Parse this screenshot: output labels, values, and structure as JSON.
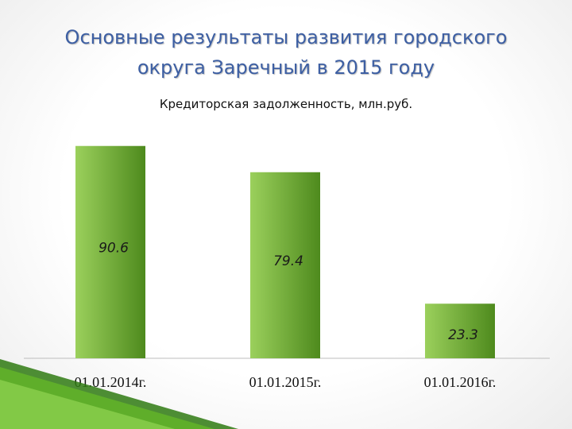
{
  "slide": {
    "title_line1": "Основные результаты развития городского",
    "title_line2": "округа Заречный в 2015 году"
  },
  "colors": {
    "title": "#3d5fa3",
    "bar_light": "#9bd05c",
    "bar_dark": "#4e8a1d",
    "decor": "#4f9a20"
  },
  "chart_data": {
    "type": "bar",
    "title": "Кредиторская задолженность, млн.руб.",
    "categories": [
      "01.01.2014г.",
      "01.01.2015г.",
      "01.01.2016г."
    ],
    "values": [
      90.6,
      79.4,
      23.3
    ],
    "value_labels": [
      "90.6",
      "79.4",
      "23.3"
    ],
    "ylim": [
      0,
      100
    ],
    "grid": false,
    "legend": "none"
  }
}
